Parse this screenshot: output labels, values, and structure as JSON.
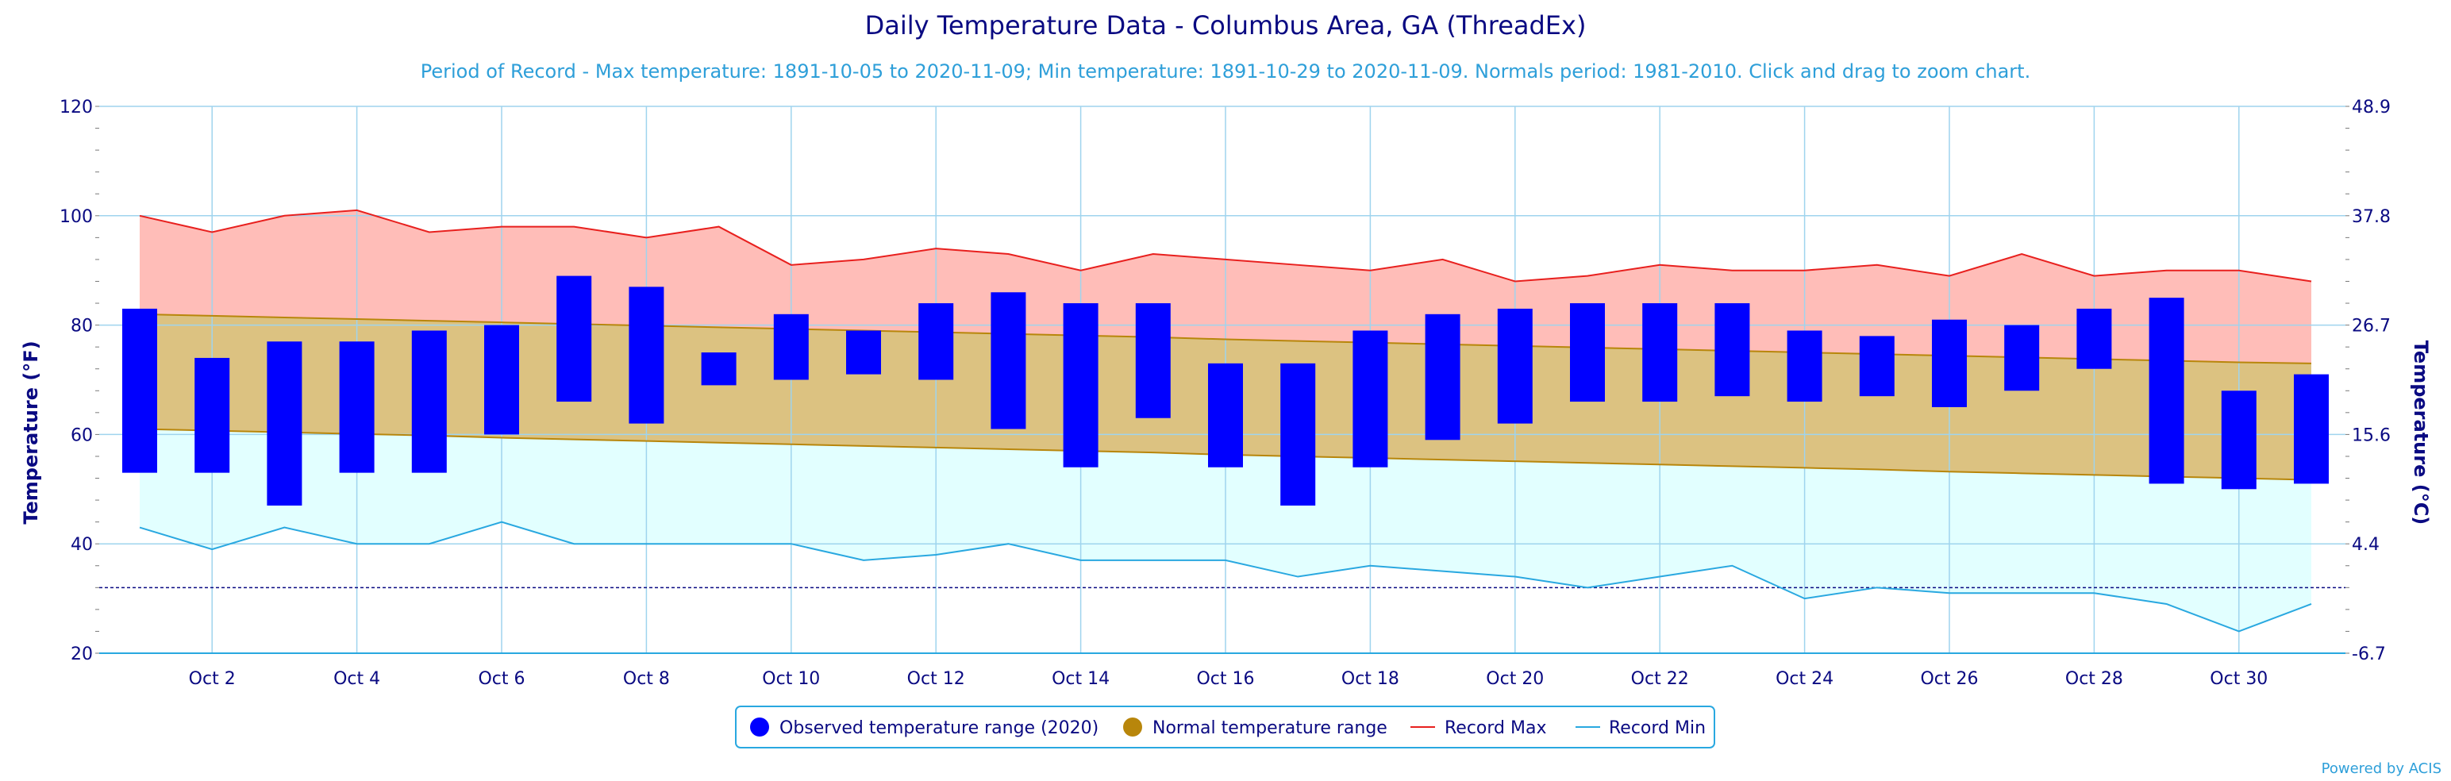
{
  "chart_data": {
    "type": "bar",
    "title": "Daily Temperature Data - Columbus Area, GA (ThreadEx)",
    "subtitle": "Period of Record - Max temperature: 1891-10-05 to 2020-11-09; Min temperature: 1891-10-29 to 2020-11-09. Normals period: 1981-2010. Click and drag to zoom chart.",
    "ylabel": "Temperature (°F)",
    "ylabel_right": "Temperature (°C)",
    "ylim": [
      20,
      120
    ],
    "y_ticks": [
      20,
      40,
      60,
      80,
      100,
      120
    ],
    "y_right_ticks": [
      "-6.7",
      "4.4",
      "15.6",
      "26.7",
      "37.8",
      "48.9"
    ],
    "x_tick_labels": [
      "Oct 2",
      "Oct 4",
      "Oct 6",
      "Oct 8",
      "Oct 10",
      "Oct 12",
      "Oct 14",
      "Oct 16",
      "Oct 18",
      "Oct 20",
      "Oct 22",
      "Oct 24",
      "Oct 26",
      "Oct 28",
      "Oct 30"
    ],
    "freezing_line": 32,
    "days": [
      1,
      2,
      3,
      4,
      5,
      6,
      7,
      8,
      9,
      10,
      11,
      12,
      13,
      14,
      15,
      16,
      17,
      18,
      19,
      20,
      21,
      22,
      23,
      24,
      25,
      26,
      27,
      28,
      29,
      30,
      31
    ],
    "series": [
      {
        "name": "Observed temperature range (2020)",
        "color": "#0000ff",
        "low": [
          53,
          53,
          47,
          53,
          53,
          60,
          66,
          62,
          69,
          70,
          71,
          70,
          61,
          54,
          63,
          54,
          47,
          54,
          59,
          62,
          66,
          66,
          67,
          66,
          67,
          65,
          68,
          72,
          51,
          50,
          51
        ],
        "high": [
          83,
          74,
          77,
          77,
          79,
          80,
          89,
          87,
          75,
          82,
          79,
          84,
          86,
          84,
          84,
          73,
          73,
          79,
          82,
          83,
          84,
          84,
          84,
          79,
          78,
          81,
          80,
          83,
          85,
          68,
          71
        ]
      },
      {
        "name": "Normal temperature range",
        "color": "#b8860b",
        "fill": "#dcc281",
        "low": [
          61.0,
          60.7,
          60.4,
          60.1,
          59.8,
          59.4,
          59.1,
          58.8,
          58.5,
          58.2,
          57.9,
          57.6,
          57.3,
          57.0,
          56.7,
          56.3,
          56.0,
          55.7,
          55.4,
          55.1,
          54.8,
          54.5,
          54.2,
          53.9,
          53.6,
          53.2,
          52.9,
          52.6,
          52.3,
          52.0,
          51.7
        ],
        "high": [
          82.0,
          81.7,
          81.4,
          81.1,
          80.8,
          80.5,
          80.2,
          79.9,
          79.6,
          79.3,
          79.0,
          78.7,
          78.4,
          78.1,
          77.8,
          77.4,
          77.1,
          76.8,
          76.5,
          76.2,
          75.9,
          75.6,
          75.3,
          75.0,
          74.7,
          74.4,
          74.1,
          73.8,
          73.5,
          73.2,
          73.0
        ]
      },
      {
        "name": "Record Max",
        "color": "#e8201e",
        "fill": "#ffbdb8",
        "values": [
          100,
          97,
          100,
          101,
          97,
          98,
          98,
          96,
          98,
          91,
          92,
          94,
          93,
          90,
          93,
          92,
          91,
          90,
          92,
          88,
          89,
          91,
          90,
          90,
          91,
          89,
          93,
          89,
          90,
          90,
          88
        ]
      },
      {
        "name": "Record Min",
        "color": "#29a8e0",
        "fill": "#e2ffff",
        "values": [
          43,
          39,
          43,
          40,
          40,
          44,
          40,
          40,
          40,
          40,
          37,
          38,
          40,
          37,
          37,
          37,
          34,
          36,
          35,
          34,
          32,
          34,
          36,
          30,
          32,
          31,
          31,
          31,
          29,
          24,
          29
        ]
      }
    ]
  },
  "credit": "Powered by ACIS"
}
